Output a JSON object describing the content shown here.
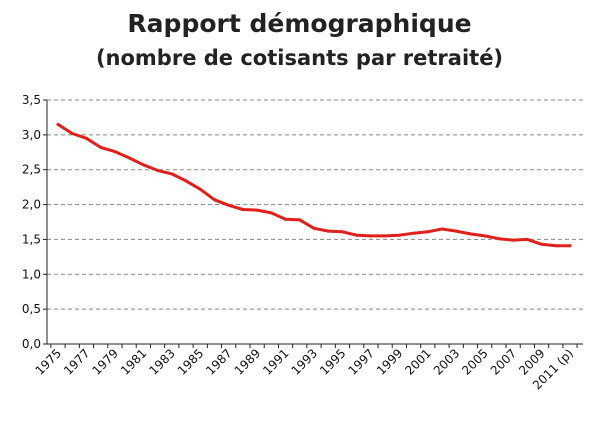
{
  "chart_data": {
    "type": "line",
    "title": "Rapport démographique",
    "subtitle": "(nombre de cotisants par retraité)",
    "xlabel": "",
    "ylabel": "",
    "ylim": [
      0,
      3.5
    ],
    "y_ticks": [
      "0,0",
      "0,5",
      "1,0",
      "1,5",
      "2,0",
      "2,5",
      "3,0",
      "3,5"
    ],
    "x_ticks": [
      "1975",
      "1977",
      "1979",
      "1981",
      "1983",
      "1985",
      "1987",
      "1989",
      "1991",
      "1993",
      "1995",
      "1997",
      "1999",
      "2001",
      "2003",
      "2005",
      "2007",
      "2009",
      "2011 (p)"
    ],
    "grid": "horizontal-dashed",
    "legend": "none",
    "line_color": "#e0201b",
    "series": [
      {
        "x": [
          "1975",
          "1976",
          "1977",
          "1978",
          "1979",
          "1980",
          "1981",
          "1982",
          "1983",
          "1984",
          "1985",
          "1986",
          "1987",
          "1988",
          "1989",
          "1990",
          "1991",
          "1992",
          "1993",
          "1994",
          "1995",
          "1996",
          "1997",
          "1998",
          "1999",
          "2000",
          "2001",
          "2002",
          "2003",
          "2004",
          "2005",
          "2006",
          "2007",
          "2008",
          "2009",
          "2010",
          "2011 (p)"
        ],
        "values": [
          3.15,
          3.02,
          2.95,
          2.82,
          2.76,
          2.67,
          2.57,
          2.49,
          2.44,
          2.34,
          2.22,
          2.07,
          1.99,
          1.93,
          1.92,
          1.88,
          1.79,
          1.78,
          1.66,
          1.62,
          1.61,
          1.56,
          1.55,
          1.55,
          1.56,
          1.59,
          1.61,
          1.65,
          1.62,
          1.58,
          1.55,
          1.51,
          1.49,
          1.5,
          1.43,
          1.41,
          1.41
        ]
      }
    ]
  }
}
